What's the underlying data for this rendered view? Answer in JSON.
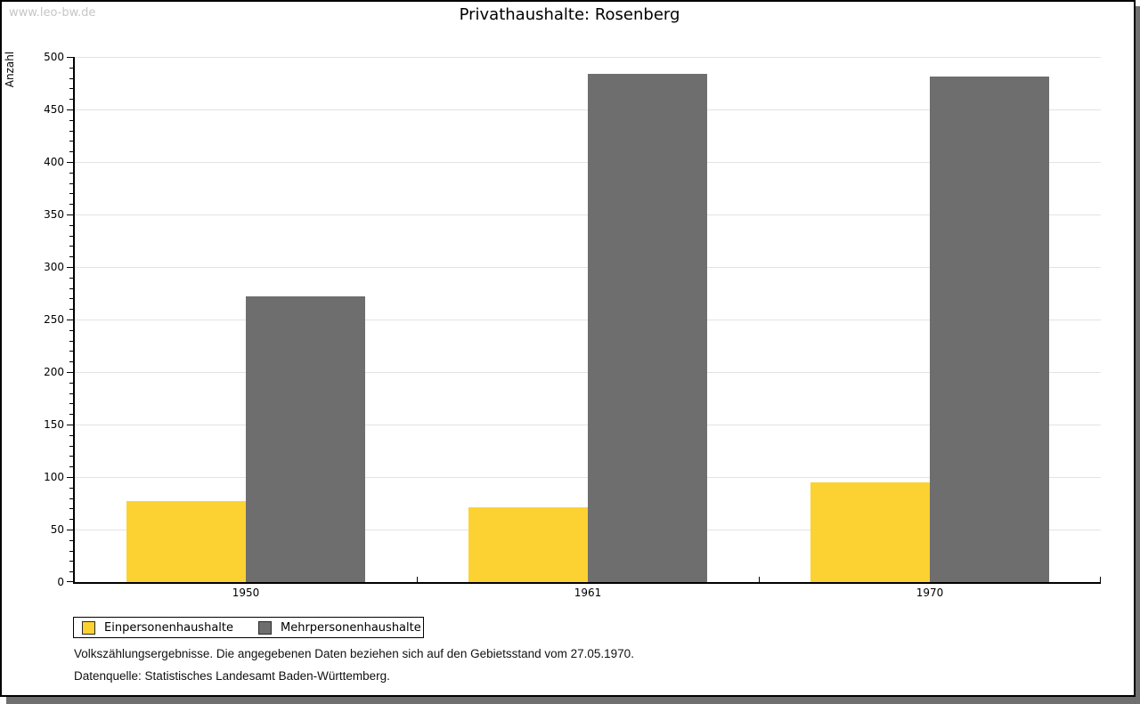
{
  "watermark": "www.leo-bw.de",
  "title": "Privathaushalte: Rosenberg",
  "chart_data": {
    "type": "bar",
    "title": "Privathaushalte: Rosenberg",
    "categories": [
      "1950",
      "1961",
      "1970"
    ],
    "series": [
      {
        "name": "Einpersonenhaushalte",
        "color": "#FCD232",
        "values": [
          77,
          71,
          95
        ]
      },
      {
        "name": "Mehrpersonenhaushalte",
        "color": "#6E6E6E",
        "values": [
          272,
          484,
          481
        ]
      }
    ],
    "xlabel": "",
    "ylabel": "Anzahl",
    "ylim": [
      0,
      500
    ],
    "ytick_step": 50,
    "ytick_labels": [
      "0",
      "50",
      "100",
      "150",
      "200",
      "250",
      "300",
      "350",
      "400",
      "450",
      "500"
    ],
    "minor_tick_step": 10,
    "grid": "horizontal-major",
    "legend_position": "bottom-left",
    "legend_border": true
  },
  "footer": {
    "line1": "Volkszählungsergebnisse. Die angegebenen Daten beziehen sich auf den Gebietsstand vom 27.05.1970.",
    "line2": "Datenquelle: Statistisches Landesamt Baden-Württemberg."
  },
  "colors": {
    "series1": "#FCD232",
    "series2": "#6E6E6E",
    "gridline": "#E3E3E3",
    "axis": "#000000",
    "watermark": "#C6C6C6",
    "frame_shadow": "#707070"
  }
}
